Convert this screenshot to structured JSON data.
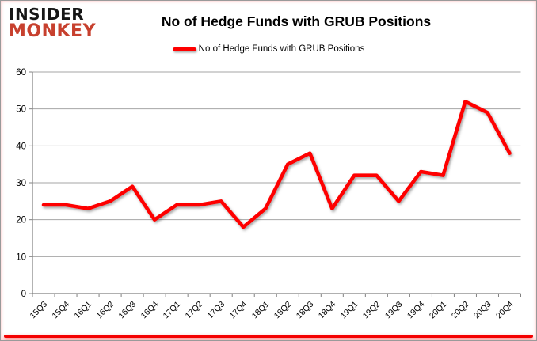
{
  "header": {
    "logo_line1": "INSIDER",
    "logo_line2": "MONKEY",
    "title": "No of Hedge Funds with GRUB Positions"
  },
  "legend": {
    "label": "No of Hedge Funds with GRUB Positions"
  },
  "chart_data": {
    "type": "line",
    "title": "No of Hedge Funds with GRUB Positions",
    "categories": [
      "15Q3",
      "15Q4",
      "16Q1",
      "16Q2",
      "16Q3",
      "16Q4",
      "17Q1",
      "17Q2",
      "17Q3",
      "17Q4",
      "18Q1",
      "18Q2",
      "18Q3",
      "18Q4",
      "19Q1",
      "19Q2",
      "19Q3",
      "19Q4",
      "20Q1",
      "20Q2",
      "20Q3",
      "20Q4"
    ],
    "series": [
      {
        "name": "No of Hedge Funds with GRUB Positions",
        "values": [
          24,
          24,
          23,
          25,
          29,
          20,
          24,
          24,
          25,
          18,
          23,
          35,
          38,
          23,
          32,
          32,
          25,
          33,
          32,
          52,
          49,
          38
        ],
        "color": "#FE0000"
      }
    ],
    "xlabel": "",
    "ylabel": "",
    "ylim": [
      0,
      60
    ],
    "yticks": [
      0,
      10,
      20,
      30,
      40,
      50,
      60
    ],
    "grid": true,
    "legend_position": "top"
  },
  "colors": {
    "logo_black": "#161616",
    "logo_red": "#C7402E",
    "gridline": "#A6A6A6",
    "axis": "#808080",
    "tick_text": "#000000",
    "accent_bar": "#F40000",
    "line": "#FE0000"
  }
}
